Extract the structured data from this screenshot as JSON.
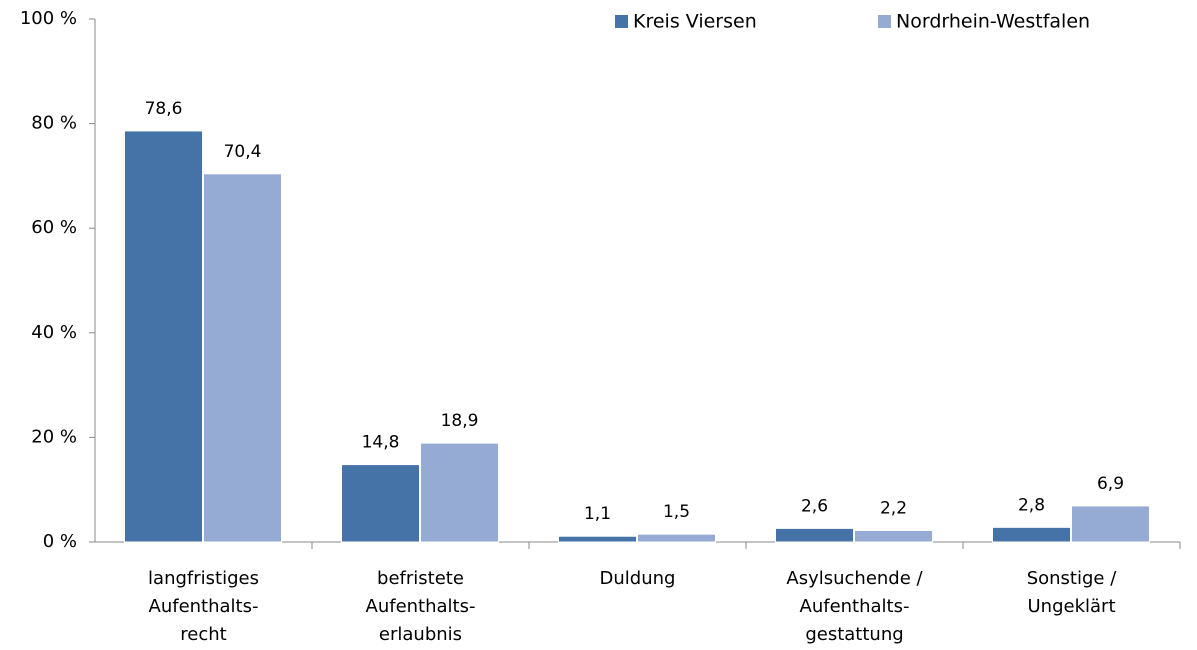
{
  "chart_data": {
    "type": "bar",
    "categories": [
      [
        "langfristiges",
        "Aufenthalts-",
        "recht"
      ],
      [
        "befristete",
        "Aufenthalts-",
        "erlaubnis"
      ],
      [
        "Duldung"
      ],
      [
        "Asylsuchende /",
        "Aufenthalts-",
        "gestattung"
      ],
      [
        "Sonstige /",
        "Ungeklärt"
      ]
    ],
    "series": [
      {
        "name": "Kreis Viersen",
        "color": "#4572a7",
        "values": [
          78.6,
          14.8,
          1.1,
          2.6,
          2.8
        ],
        "value_labels": [
          "78,6",
          "14,8",
          "1,1",
          "2,6",
          "2,8"
        ]
      },
      {
        "name": "Nordrhein-Westfalen",
        "color": "#96abd3",
        "values": [
          70.4,
          18.9,
          1.5,
          2.2,
          6.9
        ],
        "value_labels": [
          "70,4",
          "18,9",
          "1,5",
          "2,2",
          "6,9"
        ]
      }
    ],
    "ylim": [
      0,
      100
    ],
    "yticks": [
      {
        "value": 0,
        "label": "0 %"
      },
      {
        "value": 20,
        "label": "20 %"
      },
      {
        "value": 40,
        "label": "40 %"
      },
      {
        "value": 60,
        "label": "60 %"
      },
      {
        "value": 80,
        "label": "80 %"
      },
      {
        "value": 100,
        "label": "100 %"
      }
    ],
    "grid": false,
    "legend": "top"
  }
}
